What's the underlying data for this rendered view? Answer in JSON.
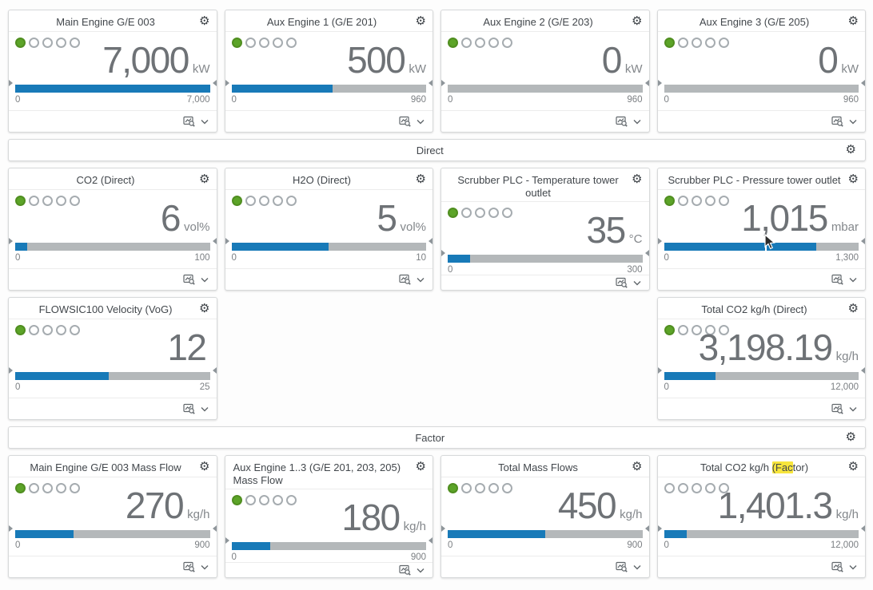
{
  "colors": {
    "bar_fill": "#187ab8",
    "bar_track": "#b4b8ba",
    "status_active": "#5ca428",
    "highlight": "#f7e53c"
  },
  "icons": {
    "gear": "⚙",
    "chart_zoom": "chart-zoom-magnifier",
    "chevron_down": "chevron-down"
  },
  "rows": [
    {
      "type": "cards",
      "cards": [
        {
          "title": "Main Engine G/E 003",
          "value": "7,000",
          "value_num": 7000,
          "unit": "kW",
          "min_label": "0",
          "max_label": "7,000",
          "max_num": 7000,
          "status_filled": 1
        },
        {
          "title": "Aux Engine 1 (G/E 201)",
          "value": "500",
          "value_num": 500,
          "unit": "kW",
          "min_label": "0",
          "max_label": "960",
          "max_num": 960,
          "status_filled": 1
        },
        {
          "title": "Aux Engine 2 (G/E 203)",
          "value": "0",
          "value_num": 0,
          "unit": "kW",
          "min_label": "0",
          "max_label": "960",
          "max_num": 960,
          "status_filled": 1
        },
        {
          "title": "Aux Engine 3 (G/E 205)",
          "value": "0",
          "value_num": 0,
          "unit": "kW",
          "min_label": "0",
          "max_label": "960",
          "max_num": 960,
          "status_filled": 1
        }
      ]
    },
    {
      "type": "header",
      "label": "Direct"
    },
    {
      "type": "cards",
      "cards": [
        {
          "title": "CO2 (Direct)",
          "value": "6",
          "value_num": 6,
          "unit": "vol%",
          "min_label": "0",
          "max_label": "100",
          "max_num": 100,
          "status_filled": 1
        },
        {
          "title": "H2O (Direct)",
          "value": "5",
          "value_num": 5,
          "unit": "vol%",
          "min_label": "0",
          "max_label": "10",
          "max_num": 10,
          "status_filled": 1
        },
        {
          "title": "Scrubber PLC - Temperature tower outlet",
          "value": "35",
          "value_num": 35,
          "unit": "°C",
          "min_label": "0",
          "max_label": "300",
          "max_num": 300,
          "status_filled": 1
        },
        {
          "title": "Scrubber PLC - Pressure tower outlet",
          "value": "1,015",
          "value_num": 1015,
          "unit": "mbar",
          "min_label": "0",
          "max_label": "1,300",
          "max_num": 1300,
          "status_filled": 1,
          "has_cursor": true,
          "cursor_pos_pct": 52
        }
      ]
    },
    {
      "type": "cards",
      "cards": [
        {
          "title": "FLOWSIC100 Velocity (VoG)",
          "value": "12",
          "value_num": 12,
          "unit": "",
          "min_label": "0",
          "max_label": "25",
          "max_num": 25,
          "status_filled": 1
        },
        null,
        null,
        {
          "title": "Total CO2 kg/h (Direct)",
          "value": "3,198.19",
          "value_num": 3198.19,
          "unit": "kg/h",
          "min_label": "0",
          "max_label": "12,000",
          "max_num": 12000,
          "status_filled": 1
        }
      ]
    },
    {
      "type": "header",
      "label": "Factor"
    },
    {
      "type": "cards",
      "cards": [
        {
          "title": "Main Engine G/E 003 Mass Flow",
          "value": "270",
          "value_num": 270,
          "unit": "kg/h",
          "min_label": "0",
          "max_label": "900",
          "max_num": 900,
          "status_filled": 1
        },
        {
          "title": "Aux Engine 1..3 (G/E 201, 203, 205) Mass Flow",
          "value": "180",
          "value_num": 180,
          "unit": "kg/h",
          "min_label": "0",
          "max_label": "900",
          "max_num": 900,
          "status_filled": 1,
          "title_wrap": true
        },
        {
          "title": "Total Mass Flows",
          "value": "450",
          "value_num": 450,
          "unit": "kg/h",
          "min_label": "0",
          "max_label": "900",
          "max_num": 900,
          "status_filled": 1
        },
        {
          "title_parts": {
            "prefix": "Total CO2 kg/h ",
            "highlight": "(Fac",
            "suffix": "tor)"
          },
          "value": "1,401.3",
          "value_num": 1401.3,
          "unit": "kg/h",
          "min_label": "0",
          "max_label": "12,000",
          "max_num": 12000,
          "status_filled": 0
        }
      ]
    }
  ]
}
